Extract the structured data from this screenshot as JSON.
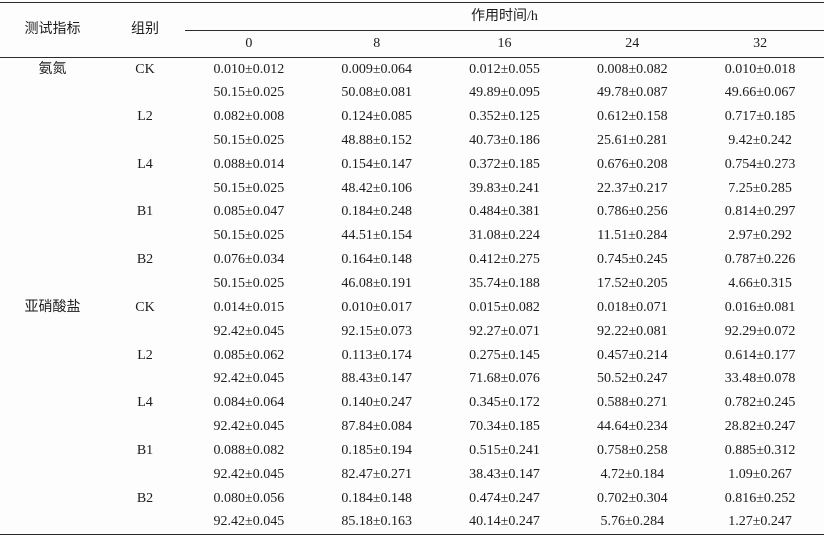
{
  "table": {
    "indicator_header": "测试指标",
    "group_header": "组别",
    "span_header": "作用时间/h",
    "time_headers": [
      "0",
      "8",
      "16",
      "24",
      "32"
    ],
    "sections": [
      {
        "indicator": "氨氮",
        "groups": [
          {
            "name": "CK",
            "rows": [
              [
                "0.010±0.012",
                "0.009±0.064",
                "0.012±0.055",
                "0.008±0.082",
                "0.010±0.018"
              ],
              [
                "50.15±0.025",
                "50.08±0.081",
                "49.89±0.095",
                "49.78±0.087",
                "49.66±0.067"
              ]
            ]
          },
          {
            "name": "L2",
            "rows": [
              [
                "0.082±0.008",
                "0.124±0.085",
                "0.352±0.125",
                "0.612±0.158",
                "0.717±0.185"
              ],
              [
                "50.15±0.025",
                "48.88±0.152",
                "40.73±0.186",
                "25.61±0.281",
                "9.42±0.242"
              ]
            ]
          },
          {
            "name": "L4",
            "rows": [
              [
                "0.088±0.014",
                "0.154±0.147",
                "0.372±0.185",
                "0.676±0.208",
                "0.754±0.273"
              ],
              [
                "50.15±0.025",
                "48.42±0.106",
                "39.83±0.241",
                "22.37±0.217",
                "7.25±0.285"
              ]
            ]
          },
          {
            "name": "B1",
            "rows": [
              [
                "0.085±0.047",
                "0.184±0.248",
                "0.484±0.381",
                "0.786±0.256",
                "0.814±0.297"
              ],
              [
                "50.15±0.025",
                "44.51±0.154",
                "31.08±0.224",
                "11.51±0.284",
                "2.97±0.292"
              ]
            ]
          },
          {
            "name": "B2",
            "rows": [
              [
                "0.076±0.034",
                "0.164±0.148",
                "0.412±0.275",
                "0.745±0.245",
                "0.787±0.226"
              ],
              [
                "50.15±0.025",
                "46.08±0.191",
                "35.74±0.188",
                "17.52±0.205",
                "4.66±0.315"
              ]
            ]
          }
        ]
      },
      {
        "indicator": "亚硝酸盐",
        "groups": [
          {
            "name": "CK",
            "rows": [
              [
                "0.014±0.015",
                "0.010±0.017",
                "0.015±0.082",
                "0.018±0.071",
                "0.016±0.081"
              ],
              [
                "92.42±0.045",
                "92.15±0.073",
                "92.27±0.071",
                "92.22±0.081",
                "92.29±0.072"
              ]
            ]
          },
          {
            "name": "L2",
            "rows": [
              [
                "0.085±0.062",
                "0.113±0.174",
                "0.275±0.145",
                "0.457±0.214",
                "0.614±0.177"
              ],
              [
                "92.42±0.045",
                "88.43±0.147",
                "71.68±0.076",
                "50.52±0.247",
                "33.48±0.078"
              ]
            ]
          },
          {
            "name": "L4",
            "rows": [
              [
                "0.084±0.064",
                "0.140±0.247",
                "0.345±0.172",
                "0.588±0.271",
                "0.782±0.245"
              ],
              [
                "92.42±0.045",
                "87.84±0.084",
                "70.34±0.185",
                "44.64±0.234",
                "28.82±0.247"
              ]
            ]
          },
          {
            "name": "B1",
            "rows": [
              [
                "0.088±0.082",
                "0.185±0.194",
                "0.515±0.241",
                "0.758±0.258",
                "0.885±0.312"
              ],
              [
                "92.42±0.045",
                "82.47±0.271",
                "38.43±0.147",
                "4.72±0.184",
                "1.09±0.267"
              ]
            ]
          },
          {
            "name": "B2",
            "rows": [
              [
                "0.080±0.056",
                "0.184±0.148",
                "0.474±0.247",
                "0.702±0.304",
                "0.816±0.252"
              ],
              [
                "92.42±0.045",
                "85.18±0.163",
                "40.14±0.247",
                "5.76±0.284",
                "1.27±0.247"
              ]
            ]
          }
        ]
      }
    ]
  }
}
